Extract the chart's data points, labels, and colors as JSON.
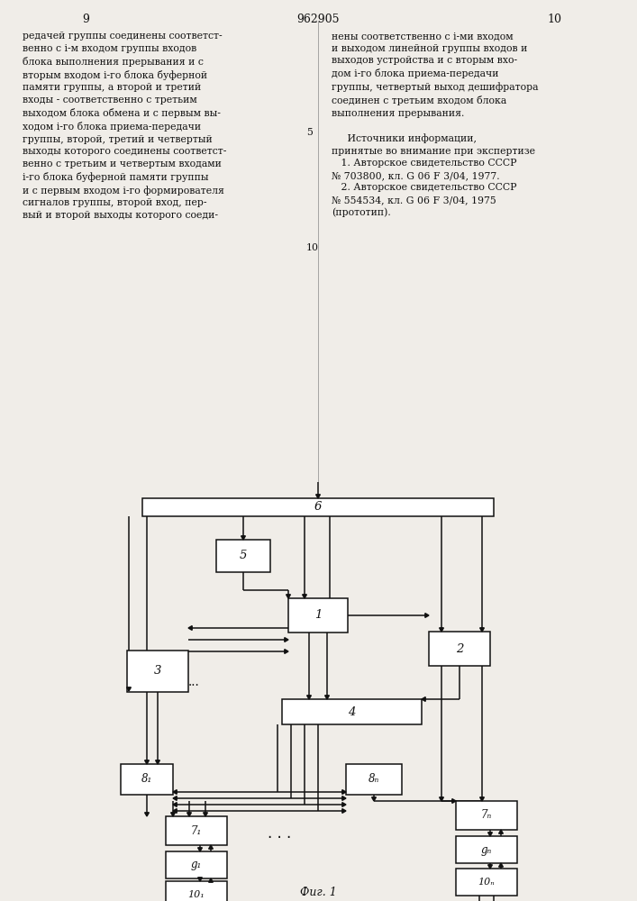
{
  "bg": "#f0ede8",
  "lc": "#111111",
  "fc": "#ffffff",
  "lw": 1.1,
  "page_left": "9",
  "page_center": "962905",
  "page_right": "10",
  "col1": "редачей группы соединены соответст-\nвенно с i-м входом группы входов\nблока выполнения прерывания и с\nвторым входом i-го блока буферной\nпамяти группы, а второй и третий\nвходы - соответственно с третьим\nвыходом блока обмена и с первым вы-\nходом i-го блока приема-передачи\nгруппы, второй, третий и четвертый\nвыходы которого соединены соответст-\nвенно с третьим и четвертым входами\ni-го блока буферной памяти группы\nи с первым входом i-го формирователя\nсигналов группы, второй вход, пер-\nвый и второй выходы которого соеди-",
  "col2": "нены соответственно с i-ми входом\nи выходом линейной группы входов и\nвыходов устройства и с вторым вхо-\nдом i-го блока приема-передачи\nгруппы, четвертый выход дешифратора\nсоединен с третьим входом блока\nвыполнения прерывания.\n\n     Источники информации,\nпринятые во внимание при экспертизе\n   1. Авторское свидетельство СССР\n№ 703800, кл. G 06 F 3/04, 1977.\n   2. Авторское свидетельство СССР\n№ 554534, кл. G 06 F 3/04, 1975\n(прототип).",
  "num5_label": "5",
  "num5_x": "5",
  "note_5_left": "5",
  "fig_caption": "Фиг. 1"
}
